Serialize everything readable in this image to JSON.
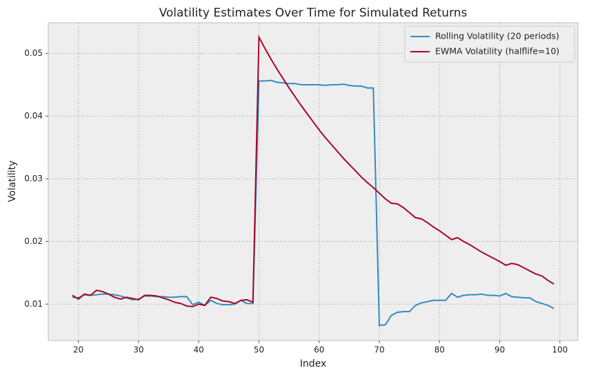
{
  "chart_data": {
    "type": "line",
    "title": "Volatility Estimates Over Time for Simulated Returns",
    "xlabel": "Index",
    "ylabel": "Volatility",
    "x": [
      19,
      20,
      21,
      22,
      23,
      24,
      25,
      26,
      27,
      28,
      29,
      30,
      31,
      32,
      33,
      34,
      35,
      36,
      37,
      38,
      39,
      40,
      41,
      42,
      43,
      44,
      45,
      46,
      47,
      48,
      49,
      50,
      51,
      52,
      53,
      54,
      55,
      56,
      57,
      58,
      59,
      60,
      61,
      62,
      63,
      64,
      65,
      66,
      67,
      68,
      69,
      70,
      71,
      72,
      73,
      74,
      75,
      76,
      77,
      78,
      79,
      80,
      81,
      82,
      83,
      84,
      85,
      86,
      87,
      88,
      89,
      90,
      91,
      92,
      93,
      94,
      95,
      96,
      97,
      98,
      99
    ],
    "series": [
      {
        "name": "Rolling Volatility (20 periods)",
        "color": "#348abd",
        "values": [
          0.0111,
          0.011,
          0.0115,
          0.0114,
          0.0115,
          0.0116,
          0.0116,
          0.0115,
          0.0113,
          0.011,
          0.0107,
          0.0108,
          0.0113,
          0.0113,
          0.0112,
          0.0112,
          0.0111,
          0.0111,
          0.0112,
          0.0112,
          0.0099,
          0.0103,
          0.0098,
          0.0106,
          0.0101,
          0.0099,
          0.0099,
          0.01,
          0.0106,
          0.0101,
          0.0101,
          0.0456,
          0.0456,
          0.0457,
          0.0454,
          0.0453,
          0.0452,
          0.0452,
          0.045,
          0.045,
          0.045,
          0.045,
          0.0449,
          0.045,
          0.045,
          0.0451,
          0.0449,
          0.0448,
          0.0448,
          0.0445,
          0.0445,
          0.0066,
          0.0067,
          0.0082,
          0.0087,
          0.0088,
          0.0088,
          0.0098,
          0.0102,
          0.0104,
          0.0106,
          0.0106,
          0.0106,
          0.0117,
          0.0111,
          0.0114,
          0.0115,
          0.0115,
          0.0116,
          0.0114,
          0.0114,
          0.0113,
          0.0117,
          0.0112,
          0.0111,
          0.011,
          0.011,
          0.0104,
          0.0101,
          0.0098,
          0.0093
        ]
      },
      {
        "name": "EWMA Volatility (halflife=10)",
        "color": "#a60628",
        "values": [
          0.0114,
          0.0108,
          0.0116,
          0.0114,
          0.0122,
          0.012,
          0.0116,
          0.0111,
          0.0108,
          0.0111,
          0.0109,
          0.0107,
          0.0114,
          0.0114,
          0.0113,
          0.011,
          0.0107,
          0.0103,
          0.0101,
          0.0097,
          0.0096,
          0.01,
          0.0098,
          0.0111,
          0.0109,
          0.0105,
          0.0104,
          0.0101,
          0.0106,
          0.0107,
          0.0103,
          0.0526,
          0.0508,
          0.0491,
          0.0475,
          0.046,
          0.0445,
          0.0431,
          0.0417,
          0.0404,
          0.0391,
          0.0378,
          0.0366,
          0.0355,
          0.0344,
          0.0333,
          0.0323,
          0.0313,
          0.0303,
          0.0294,
          0.0286,
          0.0277,
          0.0268,
          0.0261,
          0.026,
          0.0254,
          0.0246,
          0.0238,
          0.0236,
          0.023,
          0.0223,
          0.0217,
          0.021,
          0.0203,
          0.0206,
          0.02,
          0.0195,
          0.0189,
          0.0183,
          0.0178,
          0.0173,
          0.0168,
          0.0162,
          0.0165,
          0.0163,
          0.0158,
          0.0153,
          0.0148,
          0.0145,
          0.0138,
          0.0132
        ]
      }
    ],
    "xlim": [
      15,
      103
    ],
    "ylim": [
      0.0042,
      0.0549
    ],
    "xticks": [
      20,
      30,
      40,
      50,
      60,
      70,
      80,
      90,
      100
    ],
    "yticks": [
      0.01,
      0.02,
      0.03,
      0.04,
      0.05
    ],
    "grid": true,
    "legend": "upper right"
  }
}
